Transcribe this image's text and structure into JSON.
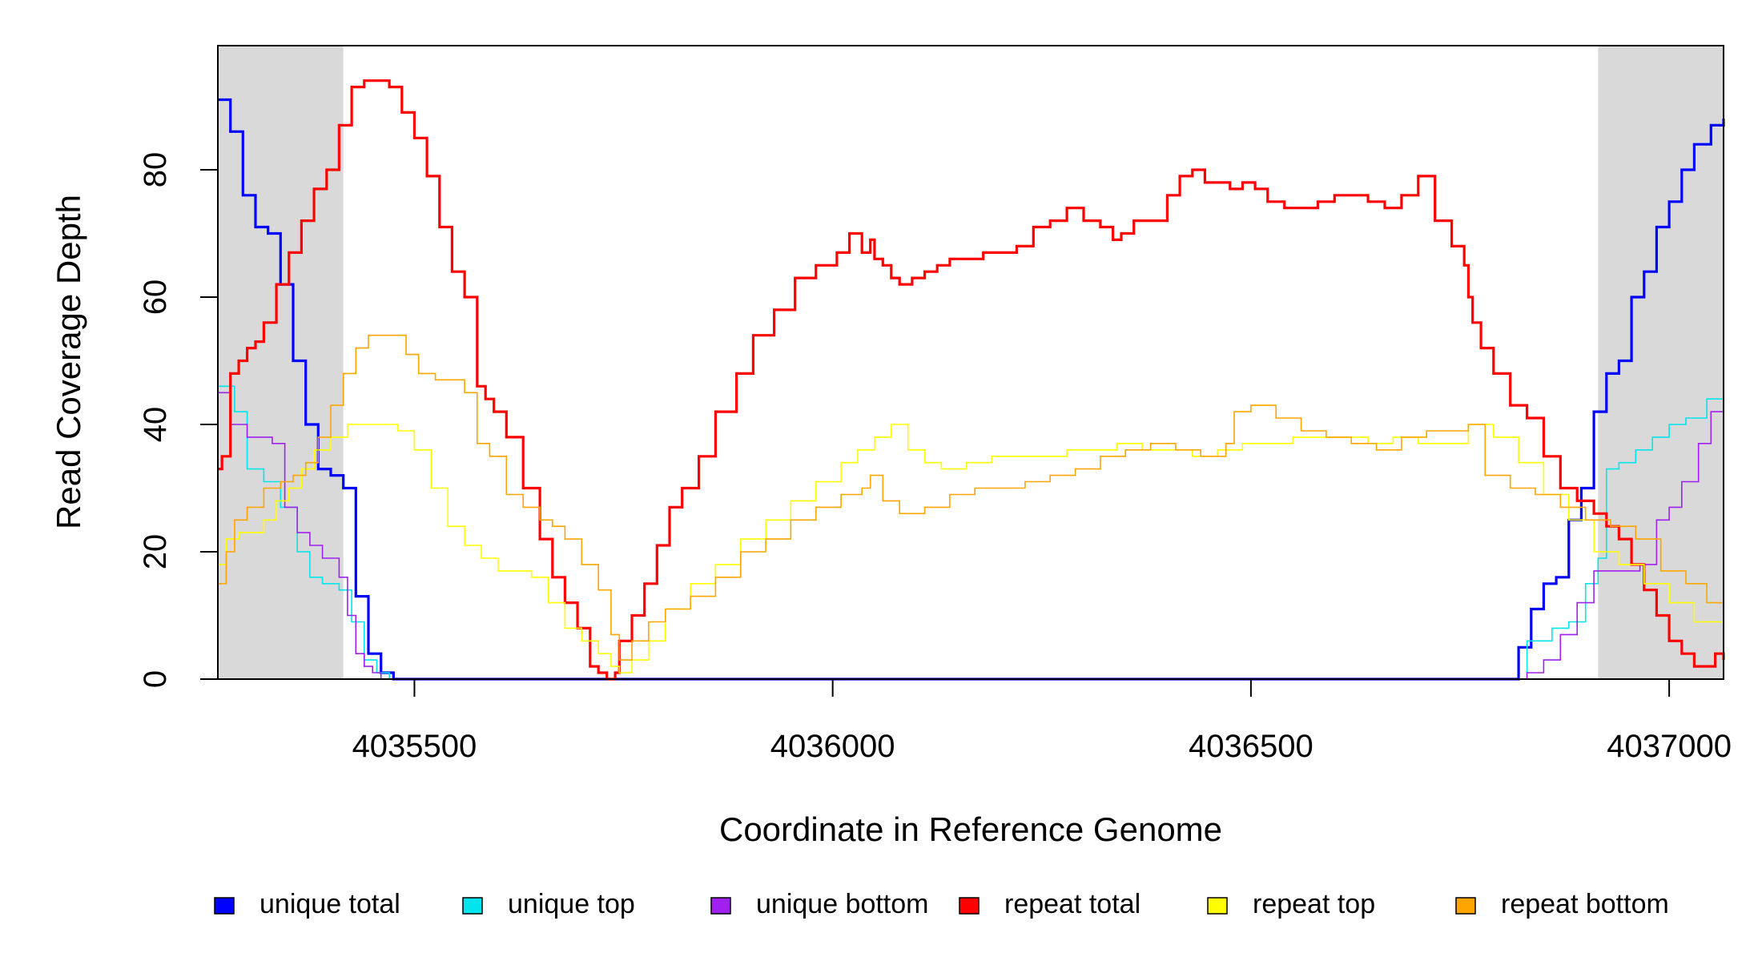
{
  "chart_data": {
    "type": "line",
    "title": "",
    "xlabel": "Coordinate in Reference Genome",
    "ylabel": "Read Coverage Depth",
    "xlim": [
      4035265,
      4037065
    ],
    "ylim": [
      0,
      99
    ],
    "x_ticks": [
      4035500,
      4036000,
      4036500,
      4037000
    ],
    "x_tick_labels": [
      "4035500",
      "4036000",
      "4036500",
      "4037000"
    ],
    "y_ticks": [
      0,
      20,
      40,
      60,
      80
    ],
    "y_tick_labels": [
      "0",
      "20",
      "40",
      "60",
      "80"
    ],
    "grid": false,
    "legend_position": "bottom",
    "shaded_regions": [
      {
        "x0": 4035265,
        "x1": 4035415,
        "color": "#d9d9d9"
      },
      {
        "x0": 4036915,
        "x1": 4037065,
        "color": "#d9d9d9"
      }
    ],
    "series": [
      {
        "name": "unique total",
        "color": "#0000ff",
        "width": 3.2,
        "x": [
          4035265,
          4035280,
          4035295,
          4035310,
          4035325,
          4035340,
          4035355,
          4035370,
          4035385,
          4035400,
          4035415,
          4035430,
          4035445,
          4035460,
          4035475,
          4035480,
          4036810,
          4036820,
          4036835,
          4036850,
          4036865,
          4036880,
          4036895,
          4036910,
          4036925,
          4036940,
          4036955,
          4036970,
          4036985,
          4037000,
          4037015,
          4037030,
          4037050,
          4037065
        ],
        "y": [
          91,
          86,
          76,
          71,
          70,
          62,
          50,
          40,
          33,
          32,
          30,
          13,
          4,
          1,
          0,
          0,
          0,
          5,
          11,
          15,
          16,
          25,
          30,
          42,
          48,
          50,
          60,
          64,
          71,
          75,
          80,
          84,
          87,
          88
        ]
      },
      {
        "name": "unique top",
        "color": "#00e5ee",
        "width": 1.6,
        "x": [
          4035265,
          4035285,
          4035300,
          4035320,
          4035340,
          4035360,
          4035375,
          4035390,
          4035410,
          4035425,
          4035440,
          4035455,
          4035470,
          4035480,
          4036810,
          4036830,
          4036860,
          4036880,
          4036900,
          4036915,
          4036925,
          4036940,
          4036960,
          4036980,
          4037000,
          4037020,
          4037045,
          4037065
        ],
        "y": [
          46,
          42,
          33,
          31,
          27,
          20,
          16,
          15,
          14,
          9,
          3,
          1,
          0,
          0,
          0,
          6,
          8,
          9,
          15,
          19,
          33,
          34,
          36,
          38,
          40,
          41,
          44,
          45
        ]
      },
      {
        "name": "unique bottom",
        "color": "#a020f0",
        "width": 1.6,
        "x": [
          4035265,
          4035280,
          4035300,
          4035330,
          4035345,
          4035360,
          4035375,
          4035390,
          4035410,
          4035420,
          4035430,
          4035440,
          4035450,
          4035460,
          4035480,
          4036810,
          4036830,
          4036850,
          4036870,
          4036890,
          4036910,
          4036940,
          4036965,
          4036985,
          4037000,
          4037015,
          4037035,
          4037050,
          4037065
        ],
        "y": [
          45,
          40,
          38,
          37,
          27,
          23,
          21,
          19,
          16,
          10,
          4,
          2,
          1,
          0,
          0,
          0,
          1,
          3,
          7,
          12,
          17,
          17,
          18,
          25,
          27,
          31,
          37,
          42,
          42
        ]
      },
      {
        "name": "repeat total",
        "color": "#ff0000",
        "width": 3.2,
        "x": [
          4035265,
          4035270,
          4035280,
          4035290,
          4035300,
          4035310,
          4035320,
          4035335,
          4035350,
          4035365,
          4035380,
          4035395,
          4035410,
          4035425,
          4035440,
          4035460,
          4035470,
          4035485,
          4035500,
          4035515,
          4035530,
          4035545,
          4035560,
          4035575,
          4035585,
          4035595,
          4035610,
          4035630,
          4035650,
          4035665,
          4035680,
          4035695,
          4035710,
          4035720,
          4035730,
          4035740,
          4035745,
          4035760,
          4035775,
          4035790,
          4035805,
          4035820,
          4035840,
          4035860,
          4035885,
          4035905,
          4035930,
          4035955,
          4035980,
          4036005,
          4036020,
          4036035,
          4036045,
          4036050,
          4036060,
          4036070,
          4036080,
          4036095,
          4036110,
          4036125,
          4036140,
          4036160,
          4036180,
          4036200,
          4036220,
          4036240,
          4036260,
          4036280,
          4036300,
          4036320,
          4036335,
          4036345,
          4036360,
          4036380,
          4036400,
          4036415,
          4036430,
          4036445,
          4036460,
          4036475,
          4036490,
          4036505,
          4036520,
          4036540,
          4036560,
          4036580,
          4036600,
          4036620,
          4036640,
          4036660,
          4036680,
          4036700,
          4036720,
          4036740,
          4036755,
          4036760,
          4036765,
          4036775,
          4036790,
          4036810,
          4036830,
          4036850,
          4036870,
          4036890,
          4036910,
          4036925,
          4036940,
          4036955,
          4036970,
          4036985,
          4037000,
          4037015,
          4037030,
          4037045,
          4037055,
          4037065
        ],
        "y": [
          33,
          35,
          48,
          50,
          52,
          53,
          56,
          62,
          67,
          72,
          77,
          80,
          87,
          93,
          94,
          94,
          93,
          89,
          85,
          79,
          71,
          64,
          60,
          46,
          44,
          42,
          38,
          30,
          22,
          16,
          12,
          8,
          2,
          1,
          0,
          1,
          6,
          10,
          15,
          21,
          27,
          30,
          35,
          42,
          48,
          54,
          58,
          63,
          65,
          67,
          70,
          67,
          69,
          66,
          65,
          63,
          62,
          63,
          64,
          65,
          66,
          66,
          67,
          67,
          68,
          71,
          72,
          74,
          72,
          71,
          69,
          70,
          72,
          72,
          76,
          79,
          80,
          78,
          78,
          77,
          78,
          77,
          75,
          74,
          74,
          75,
          76,
          76,
          75,
          74,
          76,
          79,
          72,
          68,
          65,
          60,
          56,
          52,
          48,
          43,
          41,
          35,
          30,
          28,
          26,
          24,
          22,
          18,
          14,
          10,
          6,
          4,
          2,
          2,
          4,
          3
        ],
        "y_fix": true
      },
      {
        "name": "repeat top",
        "color": "#ffff00",
        "width": 1.6,
        "x": [
          4035265,
          4035275,
          4035290,
          4035305,
          4035320,
          4035335,
          4035350,
          4035365,
          4035380,
          4035400,
          4035420,
          4035440,
          4035460,
          4035480,
          4035500,
          4035520,
          4035540,
          4035560,
          4035580,
          4035600,
          4035620,
          4035640,
          4035660,
          4035680,
          4035700,
          4035720,
          4035735,
          4035745,
          4035760,
          4035780,
          4035800,
          4035830,
          4035860,
          4035890,
          4035920,
          4035950,
          4035980,
          4036010,
          4036030,
          4036050,
          4036070,
          4036090,
          4036110,
          4036130,
          4036160,
          4036190,
          4036220,
          4036250,
          4036280,
          4036310,
          4036340,
          4036370,
          4036400,
          4036430,
          4036460,
          4036490,
          4036520,
          4036550,
          4036580,
          4036610,
          4036640,
          4036670,
          4036700,
          4036730,
          4036760,
          4036790,
          4036820,
          4036850,
          4036880,
          4036910,
          4036940,
          4036970,
          4037000,
          4037030,
          4037065
        ],
        "y": [
          18,
          22,
          23,
          23,
          25,
          28,
          30,
          33,
          36,
          38,
          40,
          40,
          40,
          39,
          36,
          30,
          24,
          21,
          19,
          17,
          17,
          16,
          12,
          8,
          6,
          4,
          2,
          1,
          3,
          6,
          11,
          15,
          18,
          22,
          25,
          28,
          31,
          34,
          36,
          38,
          40,
          36,
          34,
          33,
          34,
          35,
          35,
          35,
          36,
          36,
          37,
          36,
          36,
          35,
          36,
          37,
          37,
          38,
          38,
          38,
          37,
          38,
          37,
          37,
          40,
          38,
          34,
          29,
          25,
          20,
          18,
          15,
          12,
          9,
          3
        ]
      },
      {
        "name": "repeat bottom",
        "color": "#ffa500",
        "width": 1.6,
        "x": [
          4035265,
          4035275,
          4035285,
          4035300,
          4035320,
          4035340,
          4035355,
          4035370,
          4035385,
          4035400,
          4035415,
          4035430,
          4035445,
          4035470,
          4035490,
          4035505,
          4035525,
          4035545,
          4035560,
          4035575,
          4035590,
          4035610,
          4035630,
          4035650,
          4035665,
          4035680,
          4035700,
          4035720,
          4035735,
          4035745,
          4035760,
          4035780,
          4035800,
          4035830,
          4035860,
          4035890,
          4035920,
          4035950,
          4035980,
          4036010,
          4036035,
          4036045,
          4036060,
          4036080,
          4036110,
          4036140,
          4036170,
          4036200,
          4036230,
          4036260,
          4036290,
          4036320,
          4036350,
          4036380,
          4036410,
          4036440,
          4036470,
          4036480,
          4036500,
          4036530,
          4036560,
          4036590,
          4036620,
          4036650,
          4036680,
          4036710,
          4036740,
          4036760,
          4036780,
          4036810,
          4036840,
          4036870,
          4036900,
          4036930,
          4036960,
          4036990,
          4037020,
          4037045,
          4037065
        ],
        "y": [
          15,
          20,
          25,
          27,
          30,
          31,
          32,
          34,
          38,
          43,
          48,
          52,
          54,
          54,
          51,
          48,
          47,
          47,
          45,
          37,
          35,
          29,
          27,
          25,
          24,
          22,
          18,
          14,
          7,
          3,
          6,
          9,
          11,
          13,
          16,
          20,
          22,
          25,
          27,
          29,
          30,
          32,
          28,
          26,
          27,
          29,
          30,
          30,
          31,
          32,
          33,
          35,
          36,
          37,
          36,
          35,
          37,
          42,
          43,
          41,
          39,
          38,
          37,
          36,
          38,
          39,
          39,
          40,
          32,
          30,
          29,
          27,
          25,
          24,
          22,
          17,
          15,
          12,
          10
        ]
      }
    ]
  }
}
